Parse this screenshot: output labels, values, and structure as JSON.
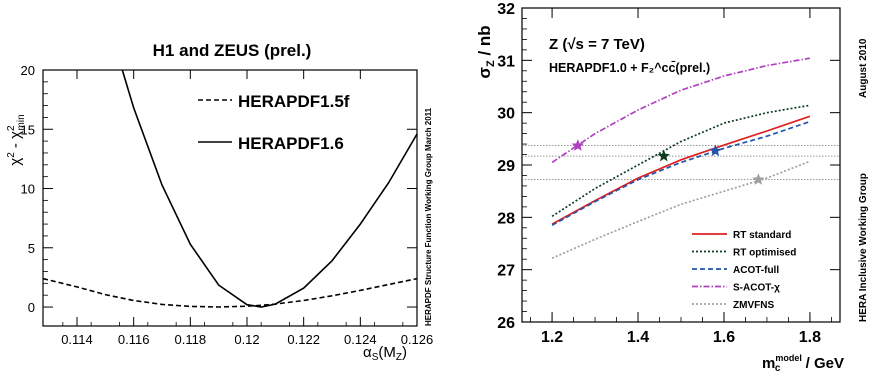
{
  "chart_data": [
    {
      "type": "line",
      "title": "H1 and ZEUS (prel.)",
      "xlabel": "α_S(M_Z)",
      "ylabel": "χ² - χ²_min",
      "side_note": "HERAPDF Structure Function Working Group    March 2011",
      "xlim": [
        0.1128,
        0.126
      ],
      "ylim": [
        -1.6,
        20
      ],
      "xticks": [
        "0.114",
        "0.116",
        "0.118",
        "0.12",
        "0.122",
        "0.124",
        "0.126"
      ],
      "xtick_values": [
        0.114,
        0.116,
        0.118,
        0.12,
        0.122,
        0.124,
        0.126
      ],
      "yticks": [
        "0",
        "5",
        "10",
        "15",
        "20"
      ],
      "ytick_values": [
        0,
        5,
        10,
        15,
        20
      ],
      "legend_position": "top-right",
      "series": [
        {
          "name": "HERAPDF1.5f",
          "style": "dashed",
          "color": "#000000",
          "x": [
            0.1128,
            0.114,
            0.115,
            0.116,
            0.117,
            0.118,
            0.119,
            0.12,
            0.1205,
            0.121,
            0.122,
            0.123,
            0.124,
            0.125,
            0.126
          ],
          "y": [
            2.4,
            1.7,
            1.05,
            0.55,
            0.22,
            0.05,
            0.0,
            0.07,
            0.15,
            0.25,
            0.55,
            0.95,
            1.4,
            1.9,
            2.4
          ]
        },
        {
          "name": "HERAPDF1.6",
          "style": "solid",
          "color": "#000000",
          "x": [
            0.1156,
            0.116,
            0.117,
            0.118,
            0.119,
            0.12,
            0.1205,
            0.121,
            0.122,
            0.123,
            0.124,
            0.125,
            0.126
          ],
          "y": [
            20.0,
            16.8,
            10.3,
            5.3,
            1.85,
            0.2,
            0.0,
            0.25,
            1.6,
            3.9,
            7.0,
            10.5,
            14.6
          ]
        }
      ]
    },
    {
      "type": "line",
      "title": "Z (√s = 7 TeV)",
      "subtitle": "HERAPDF1.0 + F₂^cc̄(prel.)",
      "xlabel": "m_c^model / GeV",
      "ylabel": "σ_Z / nb",
      "side_note_top": "August 2010",
      "side_note": "HERA Inclusive Working Group",
      "xlim": [
        1.13,
        1.87
      ],
      "ylim": [
        26,
        32
      ],
      "xticks": [
        "1.2",
        "1.4",
        "1.6",
        "1.8"
      ],
      "xtick_values": [
        1.2,
        1.4,
        1.6,
        1.8
      ],
      "yticks": [
        "26",
        "27",
        "28",
        "29",
        "30",
        "31",
        "32"
      ],
      "ytick_values": [
        26,
        27,
        28,
        29,
        30,
        31,
        32
      ],
      "legend_position": "bottom-right",
      "series": [
        {
          "name": "RT standard",
          "style": "solid",
          "color": "#e02020",
          "x": [
            1.2,
            1.3,
            1.4,
            1.5,
            1.6,
            1.7,
            1.8
          ],
          "y": [
            27.87,
            28.32,
            28.75,
            29.1,
            29.38,
            29.65,
            29.93
          ]
        },
        {
          "name": "RT optimised",
          "style": "dotted",
          "color": "#0f3d1f",
          "x": [
            1.2,
            1.3,
            1.4,
            1.5,
            1.6,
            1.7,
            1.8
          ],
          "y": [
            28.02,
            28.55,
            29.0,
            29.45,
            29.8,
            30.0,
            30.14
          ]
        },
        {
          "name": "ACOT-full",
          "style": "dashed",
          "color": "#2255aa",
          "x": [
            1.2,
            1.3,
            1.4,
            1.5,
            1.6,
            1.7,
            1.8
          ],
          "y": [
            27.85,
            28.3,
            28.72,
            29.05,
            29.32,
            29.55,
            29.83
          ]
        },
        {
          "name": "S-ACOT-χ",
          "style": "dashdot",
          "color": "#b040c0",
          "x": [
            1.2,
            1.3,
            1.4,
            1.5,
            1.6,
            1.7,
            1.8
          ],
          "y": [
            29.05,
            29.6,
            30.05,
            30.43,
            30.7,
            30.9,
            31.04
          ]
        },
        {
          "name": "ZMVFNS",
          "style": "dotted",
          "color": "#a0a0a0",
          "x": [
            1.2,
            1.3,
            1.4,
            1.5,
            1.6,
            1.7,
            1.8
          ],
          "y": [
            27.22,
            27.58,
            27.92,
            28.25,
            28.5,
            28.75,
            29.07
          ]
        }
      ],
      "markers": [
        {
          "series": "S-ACOT-χ",
          "x": 1.26,
          "y": 29.37,
          "color": "#b040c0"
        },
        {
          "series": "RT optimised",
          "x": 1.46,
          "y": 29.17,
          "color": "#0f3d1f"
        },
        {
          "series": "ACOT-full",
          "x": 1.58,
          "y": 29.27,
          "color": "#2255aa"
        },
        {
          "series": "ZMVFNS",
          "x": 1.68,
          "y": 28.72,
          "color": "#a0a0a0"
        }
      ],
      "reference_lines": [
        29.37,
        29.17,
        28.72
      ]
    }
  ]
}
